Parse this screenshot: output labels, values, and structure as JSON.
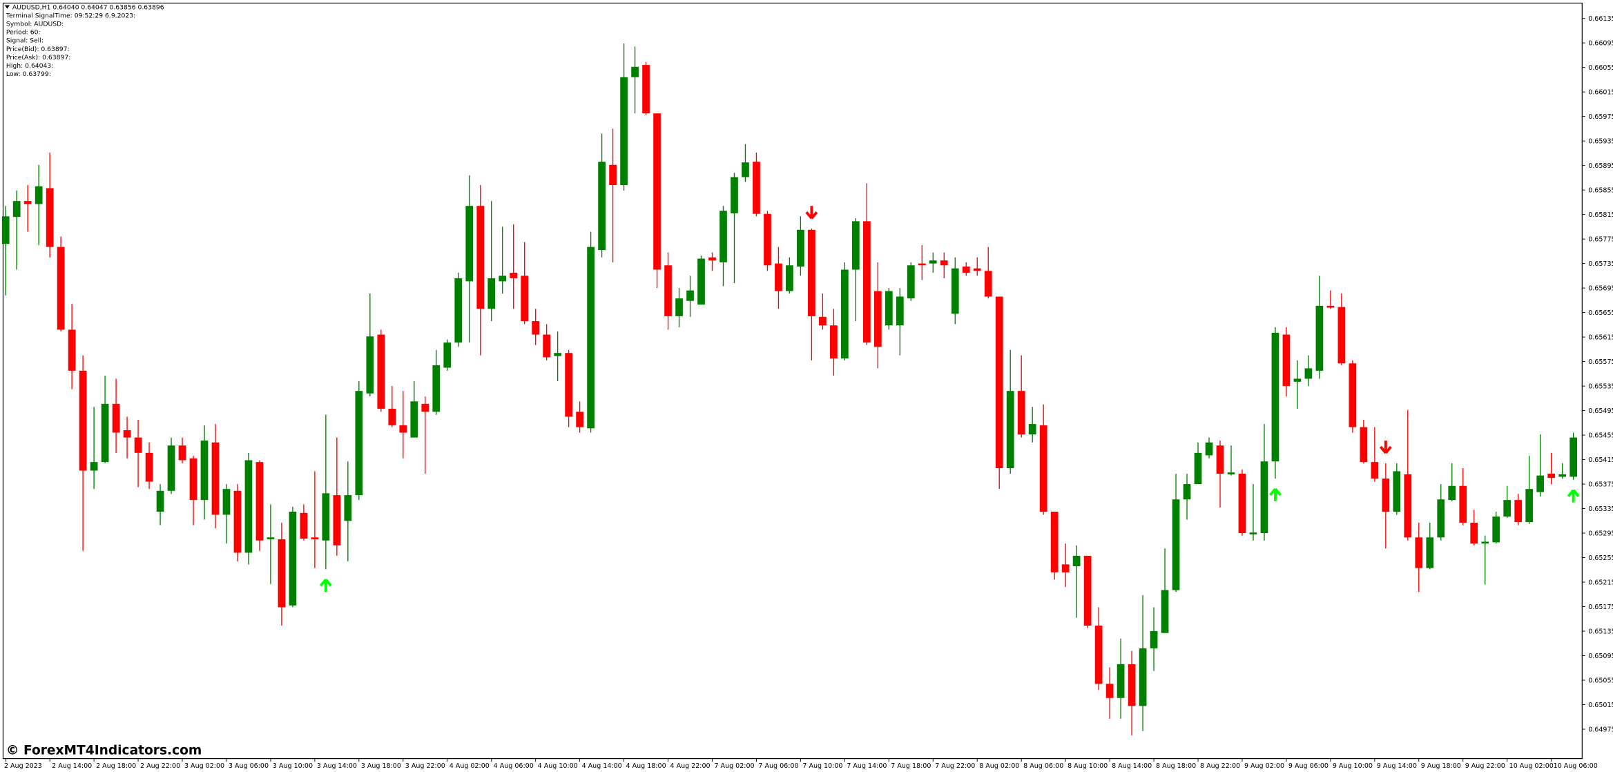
{
  "header": {
    "lines": [
      "AUDUSD,H1  0.64040 0.64047 0.63856 0.63896",
      "Terminal SignalTime: 09:52:29   6.9.2023:",
      "Symbol: AUDUSD:",
      "Period: 60:",
      "Signal: Sell:",
      "Price(Bid): 0.63897:",
      "Price(Ask): 0.63897:",
      "High: 0.64043:",
      "Low: 0.63799:"
    ]
  },
  "watermark": "© ForexMT4Indicators.com",
  "chart_data": {
    "type": "candlestick",
    "up_color": "#008000",
    "down_color": "#ff0000",
    "up_arrow_color": "#00ff00",
    "down_arrow_color": "#ff0000",
    "ylim": [
      0.64927,
      0.6616
    ],
    "yticks": [
      0.66135,
      0.66095,
      0.66055,
      0.66015,
      0.65975,
      0.65935,
      0.65895,
      0.65855,
      0.65815,
      0.65775,
      0.65735,
      0.65695,
      0.65655,
      0.65615,
      0.65575,
      0.65535,
      0.65495,
      0.65455,
      0.65415,
      0.65375,
      0.65335,
      0.65295,
      0.65255,
      0.65215,
      0.65175,
      0.65135,
      0.65095,
      0.65055,
      0.65015,
      0.64975
    ],
    "xlabels": [
      "2 Aug 2023",
      "2 Aug 14:00",
      "2 Aug 18:00",
      "2 Aug 22:00",
      "3 Aug 02:00",
      "3 Aug 06:00",
      "3 Aug 10:00",
      "3 Aug 14:00",
      "3 Aug 18:00",
      "3 Aug 22:00",
      "4 Aug 02:00",
      "4 Aug 06:00",
      "4 Aug 10:00",
      "4 Aug 14:00",
      "4 Aug 18:00",
      "4 Aug 22:00",
      "7 Aug 02:00",
      "7 Aug 06:00",
      "7 Aug 10:00",
      "7 Aug 14:00",
      "7 Aug 18:00",
      "7 Aug 22:00",
      "8 Aug 02:00",
      "8 Aug 06:00",
      "8 Aug 10:00",
      "8 Aug 14:00",
      "8 Aug 18:00",
      "8 Aug 22:00",
      "9 Aug 02:00",
      "9 Aug 06:00",
      "9 Aug 10:00",
      "9 Aug 14:00",
      "9 Aug 18:00",
      "9 Aug 22:00",
      "10 Aug 02:00",
      "10 Aug 06:00"
    ],
    "up_arrows": [
      29,
      115,
      142
    ],
    "down_arrows": [
      73,
      125
    ],
    "ohlc": [
      [
        0.65767,
        0.65829,
        0.65683,
        0.65812
      ],
      [
        0.65811,
        0.65854,
        0.65725,
        0.65837
      ],
      [
        0.65837,
        0.65863,
        0.65787,
        0.65832
      ],
      [
        0.65832,
        0.65896,
        0.65765,
        0.65861
      ],
      [
        0.65858,
        0.65916,
        0.65745,
        0.65762
      ],
      [
        0.65762,
        0.65779,
        0.65624,
        0.65627
      ],
      [
        0.65627,
        0.65669,
        0.6553,
        0.6556
      ],
      [
        0.6556,
        0.65585,
        0.65266,
        0.65397
      ],
      [
        0.65397,
        0.65501,
        0.65367,
        0.65411
      ],
      [
        0.65411,
        0.65552,
        0.65409,
        0.65506
      ],
      [
        0.65506,
        0.65547,
        0.65426,
        0.65459
      ],
      [
        0.65463,
        0.65485,
        0.65417,
        0.65451
      ],
      [
        0.65451,
        0.6548,
        0.6537,
        0.65426
      ],
      [
        0.65426,
        0.65443,
        0.65367,
        0.65379
      ],
      [
        0.6533,
        0.65375,
        0.65308,
        0.65364
      ],
      [
        0.65364,
        0.65451,
        0.65359,
        0.65438
      ],
      [
        0.65438,
        0.65451,
        0.65409,
        0.65414
      ],
      [
        0.65417,
        0.65421,
        0.65308,
        0.65349
      ],
      [
        0.65349,
        0.65471,
        0.65317,
        0.65446
      ],
      [
        0.65443,
        0.65473,
        0.65303,
        0.65325
      ],
      [
        0.65325,
        0.65375,
        0.65278,
        0.65367
      ],
      [
        0.65364,
        0.65375,
        0.65249,
        0.65263
      ],
      [
        0.65263,
        0.65426,
        0.65244,
        0.65414
      ],
      [
        0.65411,
        0.65414,
        0.65266,
        0.65283
      ],
      [
        0.65285,
        0.65342,
        0.65212,
        0.65288
      ],
      [
        0.65285,
        0.65312,
        0.65144,
        0.65174
      ],
      [
        0.65177,
        0.65338,
        0.65174,
        0.6533
      ],
      [
        0.65328,
        0.65342,
        0.65283,
        0.65286
      ],
      [
        0.65288,
        0.65396,
        0.65238,
        0.65285
      ],
      [
        0.65283,
        0.65488,
        0.65236,
        0.6536
      ],
      [
        0.65357,
        0.65451,
        0.65258,
        0.65275
      ],
      [
        0.65315,
        0.65412,
        0.65249,
        0.65357
      ],
      [
        0.65357,
        0.65543,
        0.65349,
        0.65527
      ],
      [
        0.65523,
        0.65686,
        0.65518,
        0.65616
      ],
      [
        0.65619,
        0.65627,
        0.65493,
        0.65498
      ],
      [
        0.65498,
        0.65535,
        0.65468,
        0.65471
      ],
      [
        0.65471,
        0.65527,
        0.65417,
        0.65459
      ],
      [
        0.65451,
        0.65543,
        0.65451,
        0.6551
      ],
      [
        0.65506,
        0.65518,
        0.65392,
        0.65493
      ],
      [
        0.65493,
        0.65594,
        0.65488,
        0.65569
      ],
      [
        0.65565,
        0.65611,
        0.6556,
        0.65606
      ],
      [
        0.65606,
        0.6572,
        0.65599,
        0.65711
      ],
      [
        0.65706,
        0.65879,
        0.65606,
        0.65829
      ],
      [
        0.65829,
        0.65863,
        0.65585,
        0.65661
      ],
      [
        0.65661,
        0.65837,
        0.65641,
        0.65711
      ],
      [
        0.65706,
        0.65795,
        0.65686,
        0.65715
      ],
      [
        0.6572,
        0.65799,
        0.65661,
        0.65711
      ],
      [
        0.65715,
        0.6577,
        0.65636,
        0.65641
      ],
      [
        0.65641,
        0.65661,
        0.65602,
        0.65619
      ],
      [
        0.65619,
        0.65636,
        0.65577,
        0.65582
      ],
      [
        0.65584,
        0.65624,
        0.65543,
        0.65589
      ],
      [
        0.65589,
        0.65594,
        0.65468,
        0.65485
      ],
      [
        0.65493,
        0.6551,
        0.65459,
        0.65468
      ],
      [
        0.65466,
        0.65787,
        0.65459,
        0.65762
      ],
      [
        0.65757,
        0.65947,
        0.65745,
        0.65901
      ],
      [
        0.65896,
        0.65955,
        0.65737,
        0.65863
      ],
      [
        0.65863,
        0.66094,
        0.65854,
        0.66039
      ],
      [
        0.66039,
        0.66089,
        0.6598,
        0.66056
      ],
      [
        0.66059,
        0.66064,
        0.65977,
        0.6598
      ],
      [
        0.6598,
        0.6598,
        0.65695,
        0.65725
      ],
      [
        0.65732,
        0.65753,
        0.65627,
        0.65649
      ],
      [
        0.65649,
        0.65695,
        0.65631,
        0.65678
      ],
      [
        0.65674,
        0.65715,
        0.65648,
        0.65691
      ],
      [
        0.65668,
        0.65748,
        0.65668,
        0.65743
      ],
      [
        0.65745,
        0.65753,
        0.65723,
        0.6574
      ],
      [
        0.65737,
        0.65829,
        0.65698,
        0.65821
      ],
      [
        0.65817,
        0.65883,
        0.65703,
        0.65876
      ],
      [
        0.65876,
        0.6593,
        0.65868,
        0.659
      ],
      [
        0.65901,
        0.65916,
        0.65812,
        0.65816
      ],
      [
        0.65816,
        0.65821,
        0.65723,
        0.65732
      ],
      [
        0.65735,
        0.65762,
        0.65661,
        0.6569
      ],
      [
        0.6569,
        0.65745,
        0.65686,
        0.65732
      ],
      [
        0.6573,
        0.65812,
        0.65715,
        0.6579
      ],
      [
        0.6579,
        0.65792,
        0.65577,
        0.65649
      ],
      [
        0.65648,
        0.65686,
        0.65627,
        0.65634
      ],
      [
        0.65634,
        0.65661,
        0.65552,
        0.6558
      ],
      [
        0.6558,
        0.65737,
        0.65577,
        0.65725
      ],
      [
        0.65725,
        0.65809,
        0.65641,
        0.65804
      ],
      [
        0.65804,
        0.65866,
        0.65602,
        0.65606
      ],
      [
        0.6569,
        0.65737,
        0.65564,
        0.65599
      ],
      [
        0.65634,
        0.65695,
        0.65627,
        0.6569
      ],
      [
        0.65634,
        0.65695,
        0.65585,
        0.65681
      ],
      [
        0.65678,
        0.65737,
        0.65674,
        0.65732
      ],
      [
        0.65735,
        0.65765,
        0.65708,
        0.65732
      ],
      [
        0.65735,
        0.65753,
        0.6572,
        0.6574
      ],
      [
        0.6574,
        0.65753,
        0.65711,
        0.65732
      ],
      [
        0.65653,
        0.65745,
        0.65636,
        0.65727
      ],
      [
        0.6573,
        0.65737,
        0.65715,
        0.6572
      ],
      [
        0.65727,
        0.65745,
        0.65715,
        0.65723
      ],
      [
        0.65723,
        0.65762,
        0.65678,
        0.65681
      ],
      [
        0.65681,
        0.65681,
        0.65367,
        0.65401
      ],
      [
        0.65401,
        0.65594,
        0.65392,
        0.65527
      ],
      [
        0.65527,
        0.65585,
        0.65451,
        0.65456
      ],
      [
        0.65456,
        0.65501,
        0.65443,
        0.65473
      ],
      [
        0.65471,
        0.65505,
        0.65325,
        0.6533
      ],
      [
        0.6533,
        0.6533,
        0.65219,
        0.65231
      ],
      [
        0.65244,
        0.65278,
        0.65207,
        0.65231
      ],
      [
        0.65241,
        0.65275,
        0.65157,
        0.65258
      ],
      [
        0.65258,
        0.65258,
        0.6514,
        0.65144
      ],
      [
        0.65144,
        0.65174,
        0.65039,
        0.65049
      ],
      [
        0.65049,
        0.65076,
        0.64992,
        0.65026
      ],
      [
        0.65026,
        0.65123,
        0.64992,
        0.65081
      ],
      [
        0.65081,
        0.65103,
        0.64965,
        0.65013
      ],
      [
        0.65013,
        0.65194,
        0.64972,
        0.65107
      ],
      [
        0.65107,
        0.65174,
        0.6507,
        0.65135
      ],
      [
        0.65132,
        0.6527,
        0.65132,
        0.65202
      ],
      [
        0.65202,
        0.65392,
        0.65199,
        0.6535
      ],
      [
        0.6535,
        0.65392,
        0.65317,
        0.65375
      ],
      [
        0.65375,
        0.65443,
        0.65375,
        0.65426
      ],
      [
        0.65422,
        0.65451,
        0.65417,
        0.65443
      ],
      [
        0.65438,
        0.65446,
        0.65337,
        0.65392
      ],
      [
        0.65391,
        0.65438,
        0.65389,
        0.65394
      ],
      [
        0.65392,
        0.65399,
        0.65291,
        0.65295
      ],
      [
        0.65293,
        0.65375,
        0.65283,
        0.65296
      ],
      [
        0.65295,
        0.65473,
        0.65283,
        0.65412
      ],
      [
        0.65412,
        0.65631,
        0.65384,
        0.65622
      ],
      [
        0.65619,
        0.65631,
        0.65518,
        0.65535
      ],
      [
        0.65542,
        0.65577,
        0.65498,
        0.65547
      ],
      [
        0.65547,
        0.65585,
        0.65535,
        0.65564
      ],
      [
        0.6556,
        0.65715,
        0.65547,
        0.65666
      ],
      [
        0.65666,
        0.65691,
        0.65661,
        0.65663
      ],
      [
        0.65664,
        0.65686,
        0.65569,
        0.65572
      ],
      [
        0.65572,
        0.65577,
        0.65459,
        0.65468
      ],
      [
        0.65468,
        0.6548,
        0.65409,
        0.65411
      ],
      [
        0.65411,
        0.65468,
        0.65379,
        0.65384
      ],
      [
        0.65384,
        0.65409,
        0.6527,
        0.6533
      ],
      [
        0.6533,
        0.65409,
        0.65325,
        0.65396
      ],
      [
        0.65391,
        0.65496,
        0.65283,
        0.65288
      ],
      [
        0.65288,
        0.65312,
        0.65199,
        0.65238
      ],
      [
        0.65238,
        0.65312,
        0.65236,
        0.65288
      ],
      [
        0.65288,
        0.65375,
        0.65283,
        0.6535
      ],
      [
        0.65349,
        0.65409,
        0.65347,
        0.65372
      ],
      [
        0.65372,
        0.65401,
        0.65308,
        0.65312
      ],
      [
        0.65312,
        0.65333,
        0.65275,
        0.65278
      ],
      [
        0.65278,
        0.65291,
        0.65211,
        0.65281
      ],
      [
        0.6528,
        0.6533,
        0.65278,
        0.65322
      ],
      [
        0.65322,
        0.65372,
        0.6532,
        0.65349
      ],
      [
        0.65349,
        0.65359,
        0.65308,
        0.65313
      ],
      [
        0.65313,
        0.65421,
        0.6531,
        0.65367
      ],
      [
        0.65362,
        0.65456,
        0.65355,
        0.65389
      ],
      [
        0.65392,
        0.65426,
        0.65375,
        0.65385
      ],
      [
        0.65387,
        0.65409,
        0.65384,
        0.65391
      ],
      [
        0.65387,
        0.65459,
        0.65382,
        0.65451
      ]
    ]
  }
}
